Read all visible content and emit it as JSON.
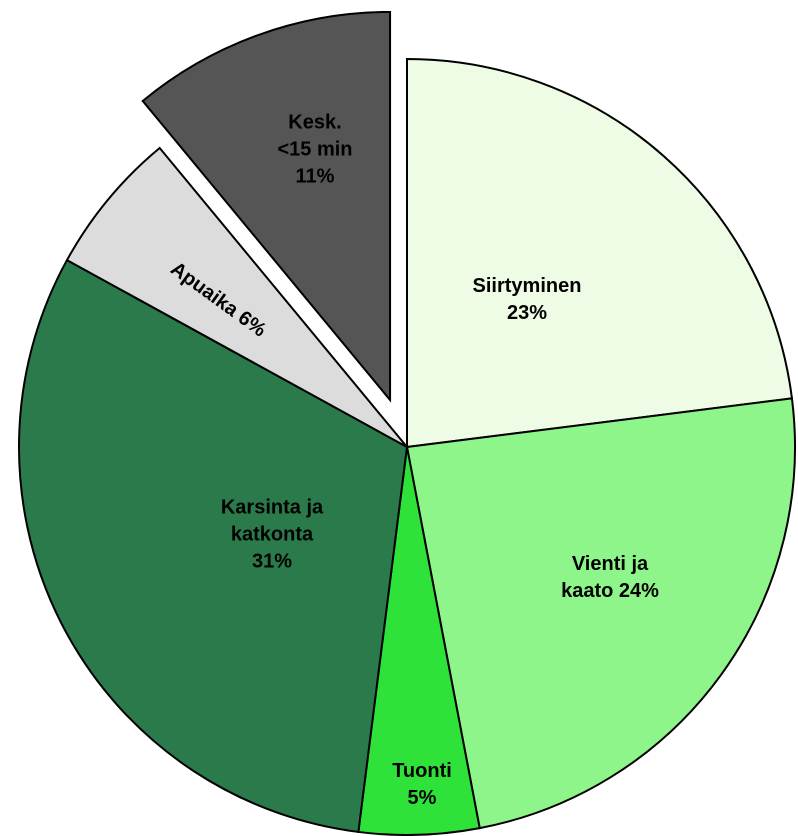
{
  "chart_data": {
    "type": "pie",
    "categories": [
      "Siirtyminen\n23%",
      "Vienti ja\nkaato 24%",
      "Tuonti\n5%",
      "Karsinta ja\nkatkonta\n31%",
      "Apuaika 6%",
      "Kesk.\n<15 min\n11%"
    ],
    "values": [
      23,
      24,
      5,
      31,
      6,
      11
    ],
    "colors": [
      "#eefce6",
      "#8ef58a",
      "#2ee23a",
      "#2b7a4b",
      "#dcdcdc",
      "#555555"
    ],
    "explode": [
      false,
      false,
      false,
      false,
      false,
      true
    ]
  }
}
